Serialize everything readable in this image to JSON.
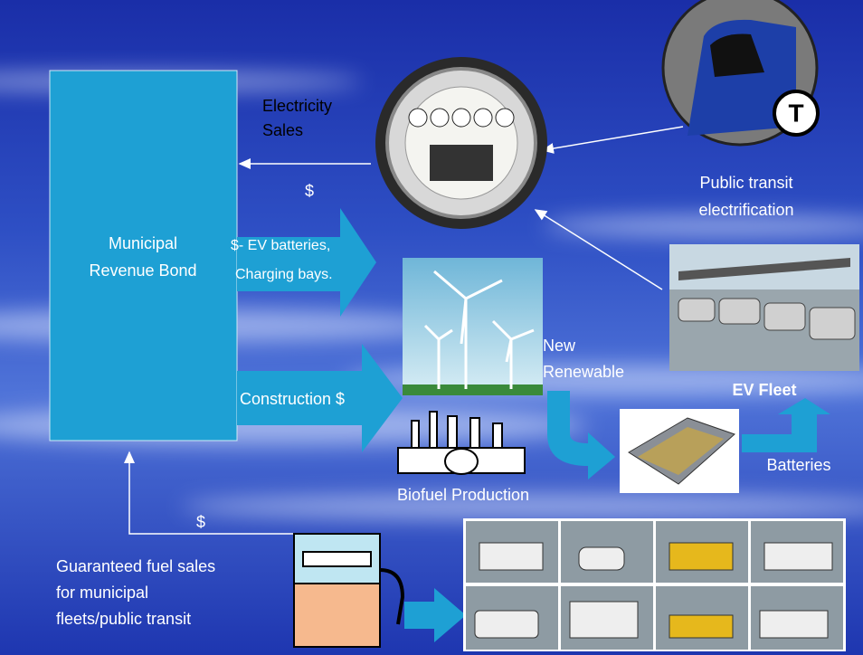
{
  "bond": {
    "lines": [
      "Municipal",
      "Revenue Bond"
    ]
  },
  "electricity_sales": {
    "lines": [
      "Electricity",
      "Sales"
    ]
  },
  "dollar_top": "$",
  "ev_batteries": {
    "lines": [
      "$- EV batteries,",
      "Charging bays."
    ]
  },
  "construction": "Construction $",
  "public_transit": {
    "lines": [
      "Public transit",
      "electrification"
    ]
  },
  "new_renewable": {
    "lines": [
      "New",
      "Renewable"
    ]
  },
  "ev_fleet": "EV Fleet",
  "batteries": "Batteries",
  "biofuel": "Biofuel Production",
  "dollar_bottom": "$",
  "fuel_sales": {
    "lines": [
      "Guaranteed fuel sales",
      "for municipal",
      "fleets/public transit"
    ]
  }
}
